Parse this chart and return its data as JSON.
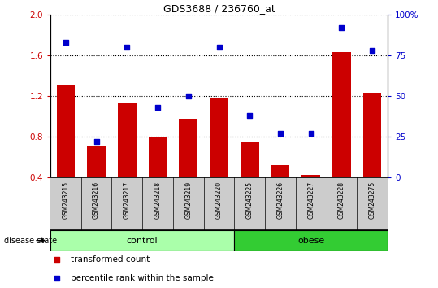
{
  "title": "GDS3688 / 236760_at",
  "samples": [
    "GSM243215",
    "GSM243216",
    "GSM243217",
    "GSM243218",
    "GSM243219",
    "GSM243220",
    "GSM243225",
    "GSM243226",
    "GSM243227",
    "GSM243228",
    "GSM243275"
  ],
  "bar_values": [
    1.3,
    0.7,
    1.13,
    0.8,
    0.97,
    1.17,
    0.75,
    0.52,
    0.42,
    1.63,
    1.23
  ],
  "scatter_percentiles": [
    83,
    22,
    80,
    43,
    50,
    80,
    38,
    27,
    27,
    92,
    78
  ],
  "bar_color": "#CC0000",
  "scatter_color": "#0000CC",
  "ylim_left": [
    0.4,
    2.0
  ],
  "ylim_right": [
    0.0,
    100.0
  ],
  "yticks_left": [
    0.4,
    0.8,
    1.2,
    1.6,
    2.0
  ],
  "yticks_right": [
    0,
    25,
    50,
    75,
    100
  ],
  "ytick_labels_right": [
    "0",
    "25",
    "50",
    "75",
    "100%"
  ],
  "groups": [
    {
      "label": "control",
      "start": 0,
      "end": 5,
      "color": "#AAFFAA"
    },
    {
      "label": "obese",
      "start": 6,
      "end": 10,
      "color": "#33CC33"
    }
  ],
  "group_label": "disease state",
  "legend_items": [
    {
      "label": "transformed count",
      "color": "#CC0000"
    },
    {
      "label": "percentile rank within the sample",
      "color": "#0000CC"
    }
  ],
  "bar_area_bg": "#CCCCCC",
  "n_samples": 11,
  "ctrl_count": 6,
  "obese_count": 5
}
